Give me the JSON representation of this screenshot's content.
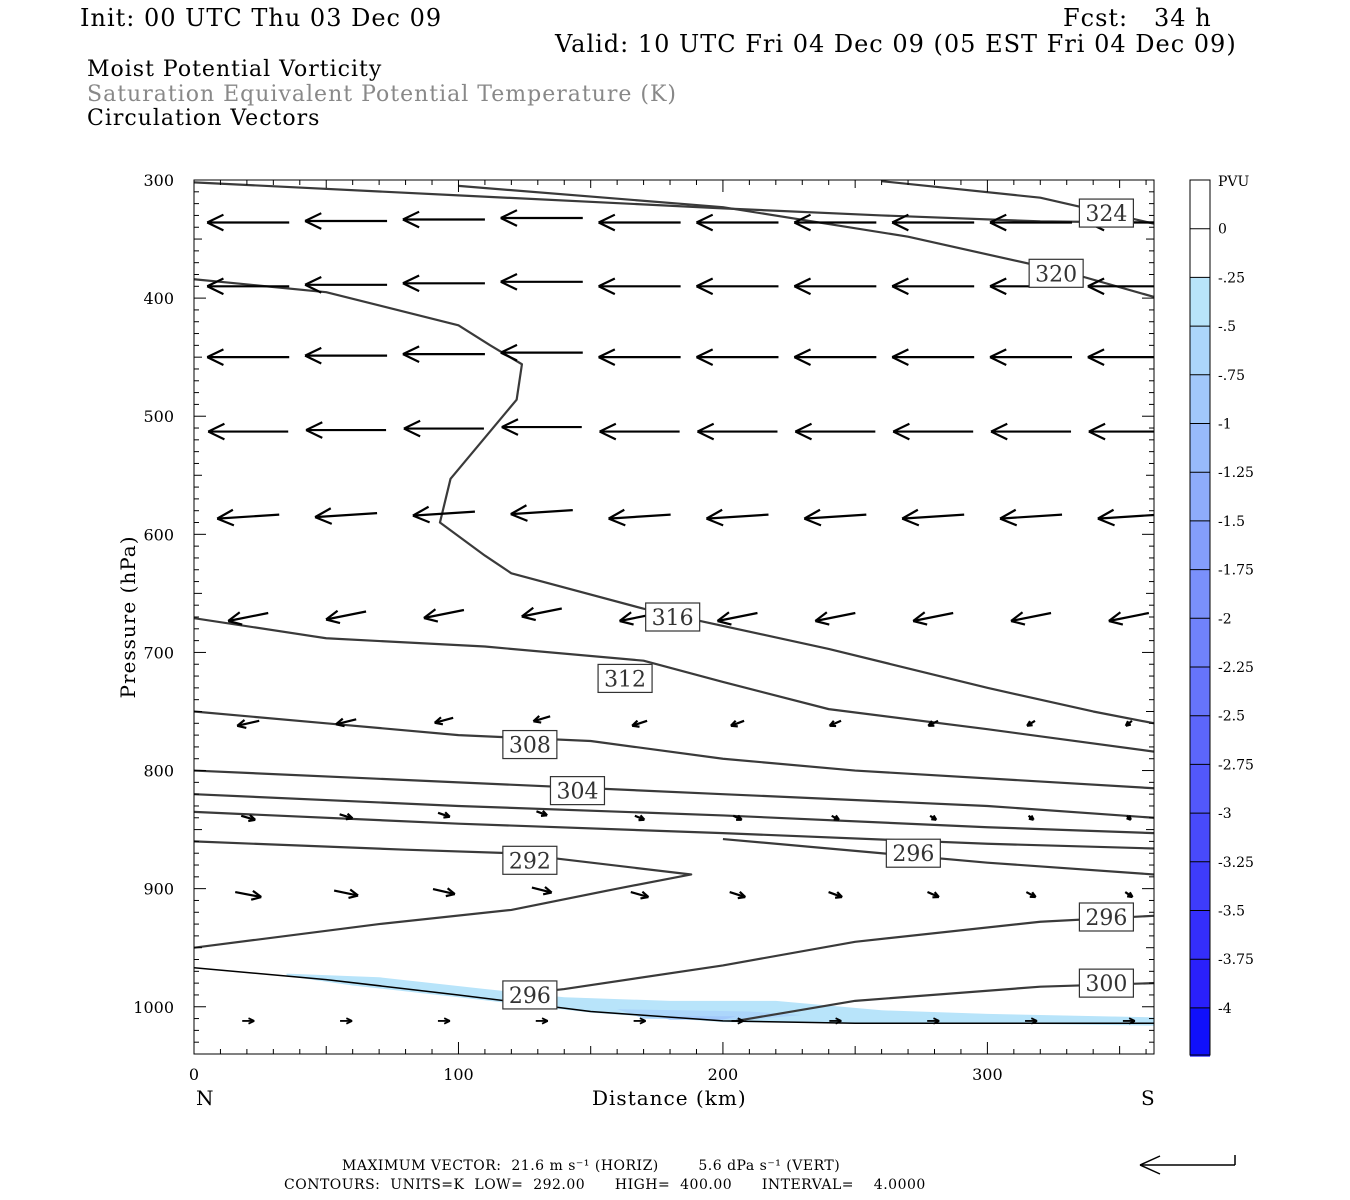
{
  "header": {
    "init": "Init: 00 UTC Thu 03 Dec 09",
    "fcst": "Fcst:   34 h",
    "valid": "Valid: 10 UTC Fri 04 Dec 09 (05 EST Fri 04 Dec 09)",
    "line1": "Moist Potential Vorticity",
    "line2": "Saturation Equivalent Potential Temperature (K)",
    "line3": "Circulation Vectors"
  },
  "footer": {
    "line1": "MAXIMUM VECTOR:  21.6 m s⁻¹ (HORIZ)        5.6 dPa s⁻¹ (VERT)",
    "line2": "CONTOURS:  UNITS=K  LOW=  292.00      HIGH=  400.00      INTERVAL=    4.0000"
  },
  "chart_data": {
    "type": "cross-section",
    "xlabel": "Distance (km)",
    "ylabel": "Pressure (hPa)",
    "x_range": [
      0,
      363
    ],
    "y_range": [
      1040,
      300
    ],
    "x_ticks": [
      0,
      100,
      200,
      300
    ],
    "y_ticks": [
      300,
      400,
      500,
      600,
      700,
      800,
      900,
      1000
    ],
    "endpoint_labels": {
      "left": "N",
      "right": "S"
    },
    "colorbar": {
      "units": "PVU",
      "labels": [
        "0",
        "-.25",
        "-.5",
        "-.75",
        "-1",
        "-1.25",
        "-1.5",
        "-1.75",
        "-2",
        "-2.25",
        "-2.5",
        "-2.75",
        "-3",
        "-3.25",
        "-3.5",
        "-3.75",
        "-4"
      ],
      "colors": [
        "#ffffff",
        "#b8e4fa",
        "#acd6fb",
        "#a2c8fb",
        "#98bafb",
        "#8eacfb",
        "#849efb",
        "#7a90fb",
        "#7082fb",
        "#6674fb",
        "#5c66fb",
        "#5258fb",
        "#484afb",
        "#3e3cfb",
        "#342efb",
        "#2a20fb",
        "#1010fb"
      ]
    },
    "contours": [
      {
        "label": "324",
        "points": [
          [
            0,
            302
          ],
          [
            100,
            313
          ],
          [
            200,
            324
          ],
          [
            260,
            330
          ],
          [
            320,
            335
          ],
          [
            363,
            336
          ]
        ]
      },
      {
        "label": "324",
        "points": [
          [
            260,
            301
          ],
          [
            320,
            315
          ],
          [
            363,
            337
          ]
        ]
      },
      {
        "label": "320",
        "points": [
          [
            100,
            305
          ],
          [
            200,
            323
          ],
          [
            270,
            348
          ],
          [
            330,
            378
          ],
          [
            363,
            399
          ]
        ]
      },
      {
        "label": "316",
        "points": [
          [
            0,
            384
          ],
          [
            50,
            395
          ],
          [
            100,
            423
          ],
          [
            112,
            440
          ],
          [
            124,
            456
          ],
          [
            122,
            486
          ],
          [
            97,
            553
          ],
          [
            93,
            590
          ],
          [
            110,
            618
          ],
          [
            120,
            633
          ],
          [
            170,
            663
          ],
          [
            240,
            697
          ],
          [
            300,
            730
          ],
          [
            340,
            750
          ],
          [
            363,
            760
          ]
        ]
      },
      {
        "label": "312",
        "points": [
          [
            0,
            671
          ],
          [
            50,
            688
          ],
          [
            110,
            695
          ],
          [
            170,
            707
          ],
          [
            200,
            725
          ],
          [
            240,
            748
          ],
          [
            300,
            765
          ],
          [
            363,
            784
          ]
        ]
      },
      {
        "label": "308",
        "points": [
          [
            0,
            750
          ],
          [
            50,
            760
          ],
          [
            100,
            770
          ],
          [
            150,
            775
          ],
          [
            200,
            790
          ],
          [
            250,
            800
          ],
          [
            363,
            815
          ]
        ]
      },
      {
        "label": "304",
        "points": [
          [
            0,
            800
          ],
          [
            100,
            810
          ],
          [
            200,
            820
          ],
          [
            300,
            830
          ],
          [
            363,
            840
          ]
        ]
      },
      {
        "label": "300",
        "points": [
          [
            0,
            820
          ],
          [
            100,
            830
          ],
          [
            200,
            838
          ],
          [
            300,
            848
          ],
          [
            363,
            853
          ]
        ]
      },
      {
        "label": "296",
        "points": [
          [
            0,
            835
          ],
          [
            100,
            845
          ],
          [
            200,
            853
          ],
          [
            300,
            862
          ],
          [
            363,
            866
          ]
        ]
      },
      {
        "label": "292",
        "points": [
          [
            0,
            860
          ],
          [
            80,
            867
          ],
          [
            120,
            870
          ],
          [
            188,
            888
          ],
          [
            160,
            900
          ],
          [
            120,
            918
          ],
          [
            70,
            930
          ],
          [
            0,
            950
          ]
        ]
      },
      {
        "label": "296",
        "points": [
          [
            363,
            888
          ],
          [
            300,
            878
          ],
          [
            250,
            868
          ],
          [
            200,
            858
          ]
        ]
      },
      {
        "label": "296",
        "points": [
          [
            363,
            923
          ],
          [
            320,
            928
          ],
          [
            250,
            945
          ],
          [
            200,
            965
          ],
          [
            140,
            985
          ],
          [
            120,
            990
          ]
        ]
      },
      {
        "label": "300",
        "points": [
          [
            363,
            980
          ],
          [
            320,
            983
          ],
          [
            250,
            995
          ],
          [
            205,
            1012
          ]
        ]
      }
    ],
    "contour_labels": [
      {
        "text": "324",
        "x": 345,
        "y": 328
      },
      {
        "text": "320",
        "x": 326,
        "y": 379
      },
      {
        "text": "316",
        "x": 181,
        "y": 670
      },
      {
        "text": "312",
        "x": 163,
        "y": 722
      },
      {
        "text": "308",
        "x": 127,
        "y": 778
      },
      {
        "text": "304",
        "x": 145,
        "y": 817
      },
      {
        "text": "292",
        "x": 127,
        "y": 876
      },
      {
        "text": "296",
        "x": 272,
        "y": 870
      },
      {
        "text": "296",
        "x": 345,
        "y": 924
      },
      {
        "text": "296",
        "x": 127,
        "y": 990
      },
      {
        "text": "300",
        "x": 345,
        "y": 980
      }
    ],
    "terrain": [
      [
        0,
        967
      ],
      [
        50,
        977
      ],
      [
        100,
        990
      ],
      [
        150,
        1004
      ],
      [
        200,
        1012
      ],
      [
        250,
        1014
      ],
      [
        300,
        1014
      ],
      [
        363,
        1014
      ]
    ],
    "pv_shading": [
      {
        "value": -0.25,
        "points": [
          [
            35,
            972
          ],
          [
            70,
            975
          ],
          [
            110,
            985
          ],
          [
            140,
            992
          ],
          [
            180,
            995
          ],
          [
            220,
            995
          ],
          [
            260,
            1003
          ],
          [
            300,
            1006
          ],
          [
            363,
            1009
          ],
          [
            363,
            1016
          ],
          [
            300,
            1014
          ],
          [
            250,
            1014
          ],
          [
            200,
            1013
          ],
          [
            150,
            1005
          ],
          [
            100,
            992
          ],
          [
            60,
            982
          ],
          [
            35,
            974
          ]
        ]
      },
      {
        "value": -0.5,
        "points": [
          [
            160,
            1002
          ],
          [
            210,
            1004
          ],
          [
            230,
            1007
          ],
          [
            210,
            1011
          ],
          [
            170,
            1010
          ]
        ]
      },
      {
        "value": -0.75,
        "points": [
          [
            175,
            1008
          ],
          [
            205,
            1008
          ],
          [
            200,
            1011
          ],
          [
            180,
            1011
          ]
        ]
      }
    ],
    "vectors": [
      {
        "x": 3,
        "y": 336,
        "u": 1.0,
        "v": 0
      }
    ]
  }
}
